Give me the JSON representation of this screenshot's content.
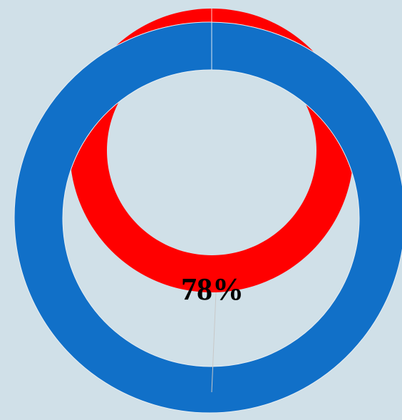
{
  "label": "78%"
}
